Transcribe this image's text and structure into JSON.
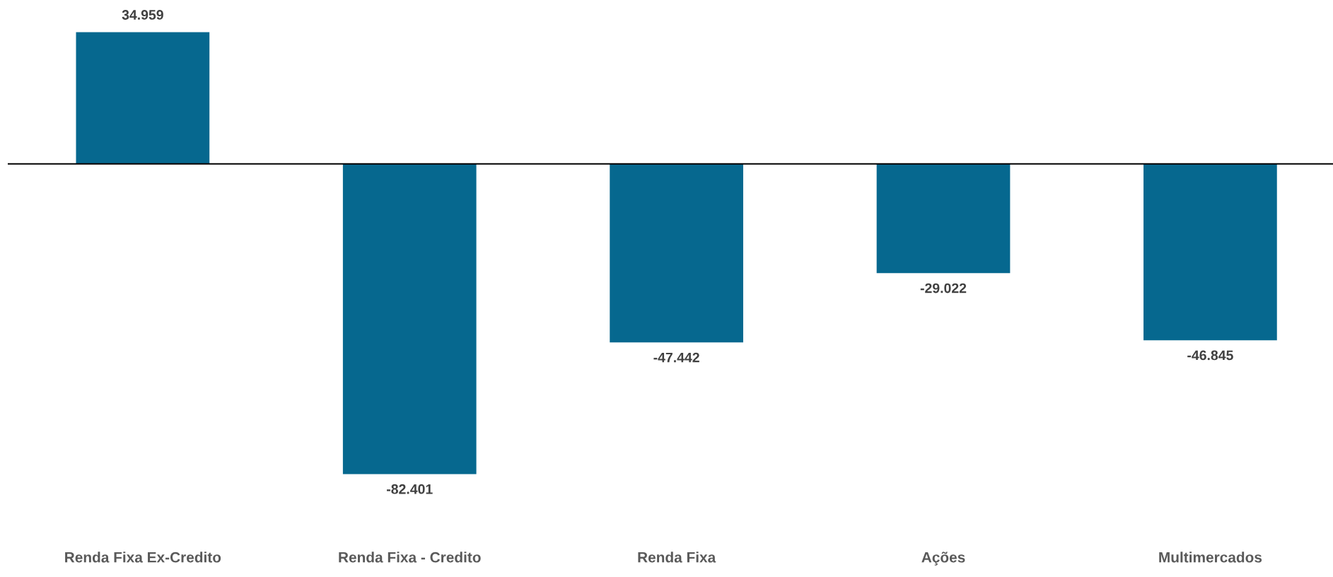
{
  "chart_data": {
    "type": "bar",
    "categories": [
      "Renda Fixa Ex-Credito",
      "Renda Fixa - Credito",
      "Renda Fixa",
      "Ações",
      "Multimercados"
    ],
    "values": [
      34.959,
      -82.401,
      -47.442,
      -29.022,
      -46.845
    ],
    "color": "#06688f",
    "data_labels": true
  }
}
